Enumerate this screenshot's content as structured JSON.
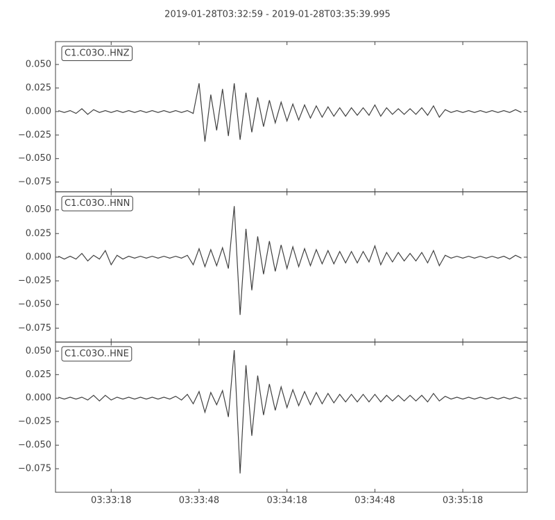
{
  "chart_data": {
    "type": "line",
    "subplots": true,
    "grid": false,
    "title": "2019-01-28T03:32:59  -  2019-01-28T03:35:39.995",
    "xlim": [
      "03:32:59",
      "03:35:40"
    ],
    "xticks": [
      "03:33:18",
      "03:33:48",
      "03:34:18",
      "03:34:48",
      "03:35:18"
    ],
    "yticks": [
      {
        "value": 0.05,
        "label": "0.050"
      },
      {
        "value": 0.025,
        "label": "0.025"
      },
      {
        "value": 0,
        "label": "0.000"
      },
      {
        "value": -0.025,
        "label": "−0.025"
      },
      {
        "value": -0.05,
        "label": "−0.050"
      },
      {
        "value": -0.075,
        "label": "−0.075"
      }
    ],
    "x": [
      "03:33:00",
      "03:33:02",
      "03:33:04",
      "03:33:06",
      "03:33:08",
      "03:33:10",
      "03:33:12",
      "03:33:14",
      "03:33:16",
      "03:33:18",
      "03:33:20",
      "03:33:22",
      "03:33:24",
      "03:33:26",
      "03:33:28",
      "03:33:30",
      "03:33:32",
      "03:33:34",
      "03:33:36",
      "03:33:38",
      "03:33:40",
      "03:33:42",
      "03:33:44",
      "03:33:46",
      "03:33:48",
      "03:33:50",
      "03:33:52",
      "03:33:54",
      "03:33:56",
      "03:33:58",
      "03:34:00",
      "03:34:02",
      "03:34:04",
      "03:34:06",
      "03:34:08",
      "03:34:10",
      "03:34:12",
      "03:34:14",
      "03:34:16",
      "03:34:18",
      "03:34:20",
      "03:34:22",
      "03:34:24",
      "03:34:26",
      "03:34:28",
      "03:34:30",
      "03:34:32",
      "03:34:34",
      "03:34:36",
      "03:34:38",
      "03:34:40",
      "03:34:42",
      "03:34:44",
      "03:34:46",
      "03:34:48",
      "03:34:50",
      "03:34:52",
      "03:34:54",
      "03:34:56",
      "03:34:58",
      "03:35:00",
      "03:35:02",
      "03:35:04",
      "03:35:06",
      "03:35:08",
      "03:35:10",
      "03:35:12",
      "03:35:14",
      "03:35:16",
      "03:35:18",
      "03:35:20",
      "03:35:22",
      "03:35:24",
      "03:35:26",
      "03:35:28",
      "03:35:30",
      "03:35:32",
      "03:35:34",
      "03:35:36",
      "03:35:38"
    ],
    "series": [
      {
        "name": "C1.C03O..HNZ",
        "color": "#404040",
        "ylim": [
          -0.0853,
          0.0743
        ],
        "values": [
          0.001,
          -0.001,
          0.001,
          -0.002,
          0.003,
          -0.003,
          0.002,
          -0.001,
          0.001,
          -0.001,
          0.001,
          -0.001,
          0.001,
          -0.001,
          0.001,
          -0.001,
          0.001,
          -0.001,
          0.001,
          -0.001,
          0.001,
          -0.001,
          0.001,
          -0.002,
          0.03,
          -0.032,
          0.018,
          -0.02,
          0.024,
          -0.026,
          0.03,
          -0.03,
          0.02,
          -0.022,
          0.015,
          -0.016,
          0.012,
          -0.012,
          0.01,
          -0.01,
          0.008,
          -0.009,
          0.007,
          -0.007,
          0.006,
          -0.006,
          0.005,
          -0.005,
          0.004,
          -0.005,
          0.004,
          -0.004,
          0.004,
          -0.004,
          0.007,
          -0.005,
          0.004,
          -0.003,
          0.003,
          -0.003,
          0.003,
          -0.003,
          0.004,
          -0.004,
          0.006,
          -0.006,
          0.002,
          -0.001,
          0.001,
          -0.001,
          0.001,
          -0.001,
          0.001,
          -0.001,
          0.001,
          -0.001,
          0.001,
          -0.001,
          0.002,
          -0.001
        ]
      },
      {
        "name": "C1.C03O..HNN",
        "color": "#404040",
        "ylim": [
          -0.0897,
          0.0691
        ],
        "values": [
          0.001,
          -0.002,
          0.001,
          -0.002,
          0.004,
          -0.004,
          0.002,
          -0.002,
          0.007,
          -0.008,
          0.002,
          -0.002,
          0.001,
          -0.001,
          0.001,
          -0.001,
          0.001,
          -0.001,
          0.001,
          -0.001,
          0.001,
          -0.001,
          0.002,
          -0.008,
          0.009,
          -0.01,
          0.008,
          -0.009,
          0.01,
          -0.012,
          0.054,
          -0.061,
          0.03,
          -0.035,
          0.022,
          -0.018,
          0.017,
          -0.015,
          0.013,
          -0.012,
          0.011,
          -0.01,
          0.009,
          -0.009,
          0.008,
          -0.007,
          0.007,
          -0.007,
          0.006,
          -0.006,
          0.006,
          -0.006,
          0.006,
          -0.005,
          0.012,
          -0.008,
          0.005,
          -0.005,
          0.005,
          -0.004,
          0.004,
          -0.004,
          0.005,
          -0.006,
          0.007,
          -0.009,
          0.002,
          -0.001,
          0.001,
          -0.001,
          0.001,
          -0.001,
          0.001,
          -0.001,
          0.001,
          -0.001,
          0.001,
          -0.002,
          0.002,
          -0.001
        ]
      },
      {
        "name": "C1.C03O..HNE",
        "color": "#404040",
        "ylim": [
          -0.1,
          0.0596
        ],
        "values": [
          0.001,
          -0.001,
          0.001,
          -0.001,
          0.001,
          -0.002,
          0.003,
          -0.003,
          0.003,
          -0.002,
          0.001,
          -0.001,
          0.001,
          -0.001,
          0.001,
          -0.001,
          0.001,
          -0.001,
          0.001,
          -0.001,
          0.002,
          -0.002,
          0.004,
          -0.006,
          0.007,
          -0.015,
          0.006,
          -0.007,
          0.008,
          -0.02,
          0.051,
          -0.08,
          0.035,
          -0.04,
          0.024,
          -0.018,
          0.015,
          -0.013,
          0.012,
          -0.01,
          0.009,
          -0.008,
          0.007,
          -0.007,
          0.006,
          -0.006,
          0.005,
          -0.005,
          0.004,
          -0.004,
          0.004,
          -0.004,
          0.004,
          -0.004,
          0.004,
          -0.004,
          0.003,
          -0.003,
          0.003,
          -0.003,
          0.003,
          -0.003,
          0.003,
          -0.004,
          0.005,
          -0.003,
          0.002,
          -0.001,
          0.001,
          -0.001,
          0.001,
          -0.001,
          0.001,
          -0.001,
          0.001,
          -0.001,
          0.001,
          -0.001,
          0.001,
          -0.001
        ]
      }
    ]
  }
}
